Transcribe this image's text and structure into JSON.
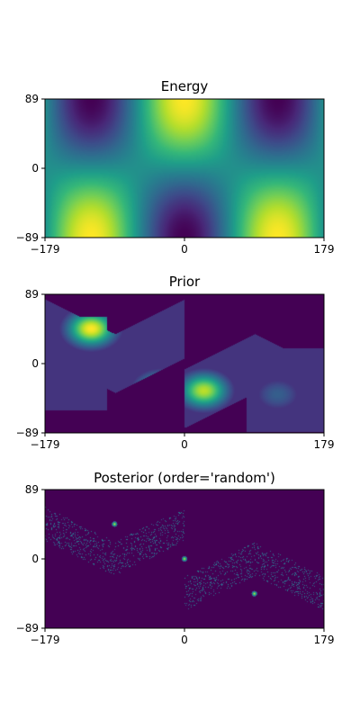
{
  "chart_data": [
    {
      "type": "heatmap",
      "title": "Energy",
      "xlim": [
        -179,
        179
      ],
      "ylim": [
        -89,
        89
      ],
      "xticks": [
        "−179",
        "0",
        "179"
      ],
      "yticks": [
        "89",
        "0",
        "−89"
      ],
      "colormap": "viridis",
      "field": "cos(1.5 * lon) * sin(lat)"
    },
    {
      "type": "heatmap",
      "title": "Prior",
      "xlim": [
        -179,
        179
      ],
      "ylim": [
        -89,
        89
      ],
      "xticks": [
        "−179",
        "0",
        "179"
      ],
      "yticks": [
        "89",
        "0",
        "−89"
      ],
      "colormap": "viridis",
      "peaks": [
        {
          "lon": -120,
          "lat": 45,
          "level": 1.0
        },
        {
          "lon": 25,
          "lat": -35,
          "level": 0.9
        },
        {
          "lon": -30,
          "lat": -35,
          "level": 0.85
        },
        {
          "lon": 120,
          "lat": -40,
          "level": 0.3
        }
      ]
    },
    {
      "type": "heatmap",
      "title": "Posterior (order='random')",
      "xlim": [
        -179,
        179
      ],
      "ylim": [
        -89,
        89
      ],
      "xticks": [
        "−179",
        "0",
        "179"
      ],
      "yticks": [
        "89",
        "0",
        "−89"
      ],
      "colormap": "viridis",
      "hotspots": [
        {
          "lon": -90,
          "lat": 45
        },
        {
          "lon": 0,
          "lat": 0
        },
        {
          "lon": 90,
          "lat": -45
        }
      ]
    }
  ],
  "colors": {
    "viridis_low": "#440154",
    "viridis_mid": "#21918c",
    "viridis_high": "#fde725"
  }
}
